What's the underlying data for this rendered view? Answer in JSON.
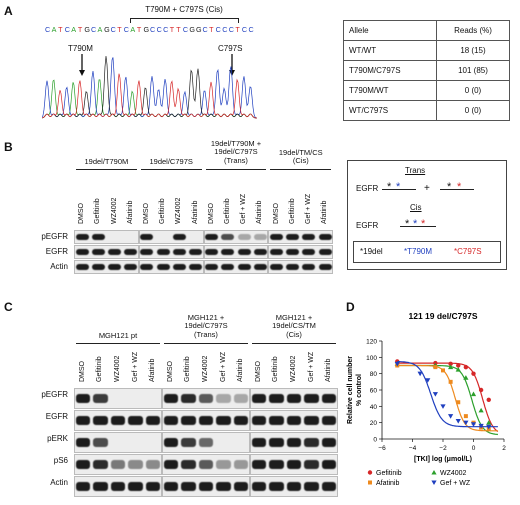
{
  "panel_a": {
    "label": "A",
    "sequence": "CATCATGCAGCTCATGCCCTTCGGCTCCCTCC",
    "bracket_label": "T790M + C797S (Cis)",
    "arrow_left": "T790M",
    "arrow_right": "C797S",
    "trace_colors": [
      "#2ca02c",
      "#1f3fbf",
      "#222222",
      "#d62728"
    ],
    "table": {
      "headers": [
        "Allele",
        "Reads (%)"
      ],
      "rows": [
        [
          "WT/WT",
          "18 (15)"
        ],
        [
          "T790M/C797S",
          "101 (85)"
        ],
        [
          "T790M/WT",
          "0 (0)"
        ],
        [
          "WT/C797S",
          "0 (0)"
        ]
      ]
    }
  },
  "panel_b": {
    "label": "B",
    "groups": [
      "19del/T790M",
      "19del/C797S",
      "19del/T790M +\n19del/C797S\n(Trans)",
      "19del/TM/CS\n(Cis)"
    ],
    "lanes": [
      "DMSO",
      "Gefitinib",
      "WZ4002",
      "Afatinib",
      "DMSO",
      "Gefitinib",
      "WZ4002",
      "Afatinib",
      "DMSO",
      "Gefitinib",
      "Gef + WZ",
      "Afatinib",
      "DMSO",
      "Gefitinib",
      "Gef + WZ",
      "Afatinib"
    ],
    "rows": [
      "pEGFR",
      "EGFR",
      "Actin"
    ],
    "band_levels": [
      [
        1,
        1,
        0,
        0,
        1,
        0,
        1,
        0,
        1,
        0.7,
        0.1,
        0.1,
        1,
        1,
        1,
        1
      ],
      [
        1,
        1,
        1,
        1,
        1,
        1,
        1,
        1,
        1,
        1,
        1,
        1,
        1,
        1,
        1,
        1
      ],
      [
        1,
        1,
        1,
        1,
        1,
        1,
        1,
        1,
        1,
        1,
        1,
        1,
        1,
        1,
        1,
        1
      ]
    ],
    "legend": {
      "trans_title": "Trans",
      "cis_title": "Cis",
      "gene": "EGFR",
      "plus": "+",
      "key_19del": "*19del",
      "key_t790m": "*T790M",
      "key_c797s": "*C797S",
      "star": "*",
      "color_t790m": "#1f3fbf",
      "color_c797s": "#d62728"
    }
  },
  "panel_c": {
    "label": "C",
    "groups": [
      "MGH121 pt",
      "MGH121 +\n19del/C797S\n(Trans)",
      "MGH121 +\n19del/CS/TM\n(Cis)"
    ],
    "lanes": [
      "DMSO",
      "Gefitinib",
      "WZ4002",
      "Gef + WZ",
      "Afatinib",
      "DMSO",
      "Gefitinib",
      "WZ4002",
      "Gef + WZ",
      "Afatinib",
      "DMSO",
      "Gefitinib",
      "WZ4002",
      "Gef + WZ",
      "Afatinib"
    ],
    "rows": [
      "pEGFR",
      "EGFR",
      "pERK",
      "pS6",
      "Actin"
    ],
    "band_levels": [
      [
        1,
        0.8,
        0,
        0,
        0,
        1,
        0.9,
        0.6,
        0.1,
        0.1,
        1,
        1,
        1,
        1,
        1
      ],
      [
        1,
        1,
        1,
        1,
        1,
        1,
        1,
        1,
        1,
        1,
        1,
        1,
        1,
        1,
        1
      ],
      [
        1,
        0.7,
        0,
        0,
        0,
        1,
        0.8,
        0.5,
        0,
        0,
        1,
        1,
        1,
        0.9,
        1
      ],
      [
        1,
        0.9,
        0.4,
        0.3,
        0.3,
        1,
        0.9,
        0.6,
        0.2,
        0.2,
        1,
        1,
        1,
        0.9,
        1
      ],
      [
        1,
        1,
        1,
        1,
        1,
        1,
        1,
        1,
        1,
        1,
        1,
        1,
        1,
        1,
        1
      ]
    ]
  },
  "panel_d": {
    "label": "D",
    "chart_data": {
      "type": "scatter",
      "title": "121 19 del/C797S",
      "xlabel": "[TKI] log (μmol/L)",
      "ylabel": "Relative cell number\n% control",
      "xlim": [
        -6,
        2
      ],
      "ylim": [
        0,
        120
      ],
      "xticks": [
        -6,
        -4,
        -2,
        0,
        2
      ],
      "yticks": [
        0,
        20,
        40,
        60,
        80,
        100,
        120
      ],
      "series": [
        {
          "name": "Gefitinib",
          "color": "#d62728",
          "marker": "circle",
          "x": [
            -5,
            -2.5,
            -1.5,
            -1,
            -0.5,
            0,
            0.5,
            1
          ],
          "y": [
            95,
            93,
            92,
            90,
            88,
            80,
            60,
            48
          ],
          "fit": {
            "top": 93,
            "bottom": 5,
            "ic50": 0.6,
            "hill": 1.3
          }
        },
        {
          "name": "WZ4002",
          "color": "#2ca02c",
          "marker": "triangle-up",
          "x": [
            -5,
            -2.5,
            -1.5,
            -1,
            -0.5,
            0,
            0.5,
            1
          ],
          "y": [
            92,
            90,
            88,
            85,
            75,
            55,
            35,
            20
          ],
          "fit": {
            "top": 90,
            "bottom": 5,
            "ic50": -0.1,
            "hill": 1.3
          }
        },
        {
          "name": "Afatinib",
          "color": "#ee8a1e",
          "marker": "square",
          "x": [
            -5,
            -2.5,
            -2,
            -1.5,
            -1,
            -0.5,
            0,
            0.5,
            1
          ],
          "y": [
            90,
            88,
            84,
            70,
            45,
            28,
            20,
            14,
            12
          ],
          "fit": {
            "top": 90,
            "bottom": 10,
            "ic50": -1.2,
            "hill": 1.4
          }
        },
        {
          "name": "Gef + WZ",
          "color": "#1f3fbf",
          "marker": "triangle-down",
          "x": [
            -5,
            -3.5,
            -3,
            -2.5,
            -2,
            -1.5,
            -1,
            -0.5,
            0,
            0.5,
            1
          ],
          "y": [
            92,
            80,
            72,
            55,
            40,
            28,
            22,
            20,
            18,
            16,
            15
          ],
          "fit": {
            "top": 95,
            "bottom": 15,
            "ic50": -2.8,
            "hill": 1.2
          }
        }
      ]
    }
  }
}
